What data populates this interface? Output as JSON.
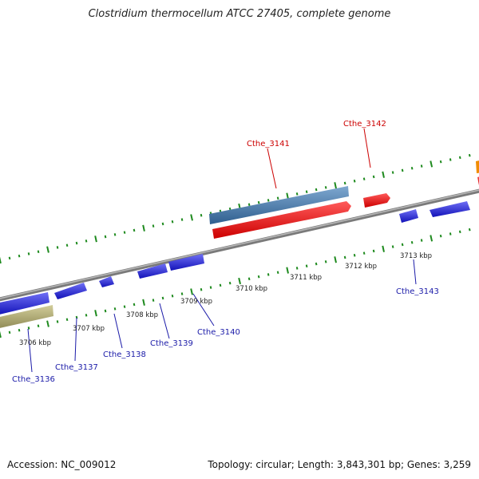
{
  "title": "Clostridium thermocellum ATCC 27405, complete genome",
  "footer": {
    "accession_label": "Accession: NC_009012",
    "topology_label": "Topology: circular; Length: 3,843,301 bp; Genes: 3,259"
  },
  "scale_labels": [
    "3706 kbp",
    "3707 kbp",
    "3708 kbp",
    "3709 kbp",
    "3710 kbp",
    "3711 kbp",
    "3712 kbp",
    "3713 kbp"
  ],
  "genes": [
    {
      "name": "Cthe_3136",
      "strand": "minus",
      "color": "#1a1adb",
      "highlight": false
    },
    {
      "name": "Cthe_3137",
      "strand": "minus",
      "color": "#1a1adb",
      "highlight": false
    },
    {
      "name": "Cthe_3138",
      "strand": "minus",
      "color": "#1a1adb",
      "highlight": false
    },
    {
      "name": "Cthe_3139",
      "strand": "minus",
      "color": "#1a1adb",
      "highlight": false
    },
    {
      "name": "Cthe_3140",
      "strand": "minus",
      "color": "#1a1adb",
      "highlight": false
    },
    {
      "name": "Cthe_3141",
      "strand": "plus",
      "color": "#e01010",
      "highlight": true
    },
    {
      "name": "Cthe_3142",
      "strand": "plus",
      "color": "#e01010",
      "highlight": true
    },
    {
      "name": "Cthe_3143",
      "strand": "minus",
      "color": "#1a1adb",
      "highlight": false
    }
  ],
  "colors": {
    "minus_gene": "#1a1adb",
    "plus_gene": "#e01010",
    "gene_label_minus": "#1a1aa8",
    "gene_label_plus": "#cc0000",
    "backbone": "#8a8a8a",
    "tick": "#1e8a1e",
    "feature_bar_blue": "#4a7fb0",
    "feature_bar_olive": "#b5b07a",
    "feature_orange": "#f08c00"
  }
}
